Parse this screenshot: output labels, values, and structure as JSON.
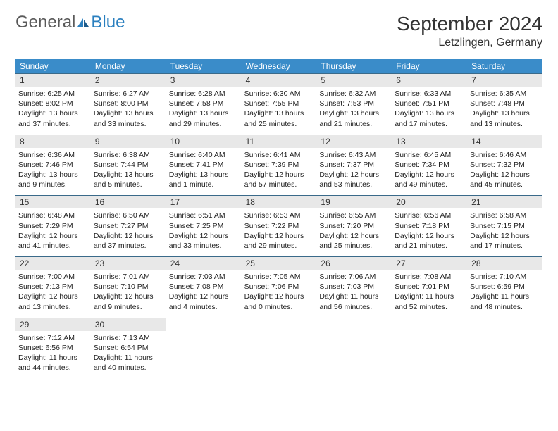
{
  "brand": {
    "general": "General",
    "blue": "Blue"
  },
  "title": "September 2024",
  "location": "Letzlingen, Germany",
  "colors": {
    "header_bg": "#3a8cc9",
    "header_text": "#ffffff",
    "daynum_bg": "#e8e8e8",
    "cell_border": "#3a6a8a",
    "logo_blue": "#2a7fbf",
    "logo_gray": "#5a5a5a"
  },
  "daysOfWeek": [
    "Sunday",
    "Monday",
    "Tuesday",
    "Wednesday",
    "Thursday",
    "Friday",
    "Saturday"
  ],
  "weeks": [
    [
      {
        "n": "1",
        "sr": "Sunrise: 6:25 AM",
        "ss": "Sunset: 8:02 PM",
        "dl": "Daylight: 13 hours and 37 minutes."
      },
      {
        "n": "2",
        "sr": "Sunrise: 6:27 AM",
        "ss": "Sunset: 8:00 PM",
        "dl": "Daylight: 13 hours and 33 minutes."
      },
      {
        "n": "3",
        "sr": "Sunrise: 6:28 AM",
        "ss": "Sunset: 7:58 PM",
        "dl": "Daylight: 13 hours and 29 minutes."
      },
      {
        "n": "4",
        "sr": "Sunrise: 6:30 AM",
        "ss": "Sunset: 7:55 PM",
        "dl": "Daylight: 13 hours and 25 minutes."
      },
      {
        "n": "5",
        "sr": "Sunrise: 6:32 AM",
        "ss": "Sunset: 7:53 PM",
        "dl": "Daylight: 13 hours and 21 minutes."
      },
      {
        "n": "6",
        "sr": "Sunrise: 6:33 AM",
        "ss": "Sunset: 7:51 PM",
        "dl": "Daylight: 13 hours and 17 minutes."
      },
      {
        "n": "7",
        "sr": "Sunrise: 6:35 AM",
        "ss": "Sunset: 7:48 PM",
        "dl": "Daylight: 13 hours and 13 minutes."
      }
    ],
    [
      {
        "n": "8",
        "sr": "Sunrise: 6:36 AM",
        "ss": "Sunset: 7:46 PM",
        "dl": "Daylight: 13 hours and 9 minutes."
      },
      {
        "n": "9",
        "sr": "Sunrise: 6:38 AM",
        "ss": "Sunset: 7:44 PM",
        "dl": "Daylight: 13 hours and 5 minutes."
      },
      {
        "n": "10",
        "sr": "Sunrise: 6:40 AM",
        "ss": "Sunset: 7:41 PM",
        "dl": "Daylight: 13 hours and 1 minute."
      },
      {
        "n": "11",
        "sr": "Sunrise: 6:41 AM",
        "ss": "Sunset: 7:39 PM",
        "dl": "Daylight: 12 hours and 57 minutes."
      },
      {
        "n": "12",
        "sr": "Sunrise: 6:43 AM",
        "ss": "Sunset: 7:37 PM",
        "dl": "Daylight: 12 hours and 53 minutes."
      },
      {
        "n": "13",
        "sr": "Sunrise: 6:45 AM",
        "ss": "Sunset: 7:34 PM",
        "dl": "Daylight: 12 hours and 49 minutes."
      },
      {
        "n": "14",
        "sr": "Sunrise: 6:46 AM",
        "ss": "Sunset: 7:32 PM",
        "dl": "Daylight: 12 hours and 45 minutes."
      }
    ],
    [
      {
        "n": "15",
        "sr": "Sunrise: 6:48 AM",
        "ss": "Sunset: 7:29 PM",
        "dl": "Daylight: 12 hours and 41 minutes."
      },
      {
        "n": "16",
        "sr": "Sunrise: 6:50 AM",
        "ss": "Sunset: 7:27 PM",
        "dl": "Daylight: 12 hours and 37 minutes."
      },
      {
        "n": "17",
        "sr": "Sunrise: 6:51 AM",
        "ss": "Sunset: 7:25 PM",
        "dl": "Daylight: 12 hours and 33 minutes."
      },
      {
        "n": "18",
        "sr": "Sunrise: 6:53 AM",
        "ss": "Sunset: 7:22 PM",
        "dl": "Daylight: 12 hours and 29 minutes."
      },
      {
        "n": "19",
        "sr": "Sunrise: 6:55 AM",
        "ss": "Sunset: 7:20 PM",
        "dl": "Daylight: 12 hours and 25 minutes."
      },
      {
        "n": "20",
        "sr": "Sunrise: 6:56 AM",
        "ss": "Sunset: 7:18 PM",
        "dl": "Daylight: 12 hours and 21 minutes."
      },
      {
        "n": "21",
        "sr": "Sunrise: 6:58 AM",
        "ss": "Sunset: 7:15 PM",
        "dl": "Daylight: 12 hours and 17 minutes."
      }
    ],
    [
      {
        "n": "22",
        "sr": "Sunrise: 7:00 AM",
        "ss": "Sunset: 7:13 PM",
        "dl": "Daylight: 12 hours and 13 minutes."
      },
      {
        "n": "23",
        "sr": "Sunrise: 7:01 AM",
        "ss": "Sunset: 7:10 PM",
        "dl": "Daylight: 12 hours and 9 minutes."
      },
      {
        "n": "24",
        "sr": "Sunrise: 7:03 AM",
        "ss": "Sunset: 7:08 PM",
        "dl": "Daylight: 12 hours and 4 minutes."
      },
      {
        "n": "25",
        "sr": "Sunrise: 7:05 AM",
        "ss": "Sunset: 7:06 PM",
        "dl": "Daylight: 12 hours and 0 minutes."
      },
      {
        "n": "26",
        "sr": "Sunrise: 7:06 AM",
        "ss": "Sunset: 7:03 PM",
        "dl": "Daylight: 11 hours and 56 minutes."
      },
      {
        "n": "27",
        "sr": "Sunrise: 7:08 AM",
        "ss": "Sunset: 7:01 PM",
        "dl": "Daylight: 11 hours and 52 minutes."
      },
      {
        "n": "28",
        "sr": "Sunrise: 7:10 AM",
        "ss": "Sunset: 6:59 PM",
        "dl": "Daylight: 11 hours and 48 minutes."
      }
    ],
    [
      {
        "n": "29",
        "sr": "Sunrise: 7:12 AM",
        "ss": "Sunset: 6:56 PM",
        "dl": "Daylight: 11 hours and 44 minutes."
      },
      {
        "n": "30",
        "sr": "Sunrise: 7:13 AM",
        "ss": "Sunset: 6:54 PM",
        "dl": "Daylight: 11 hours and 40 minutes."
      },
      null,
      null,
      null,
      null,
      null
    ]
  ]
}
